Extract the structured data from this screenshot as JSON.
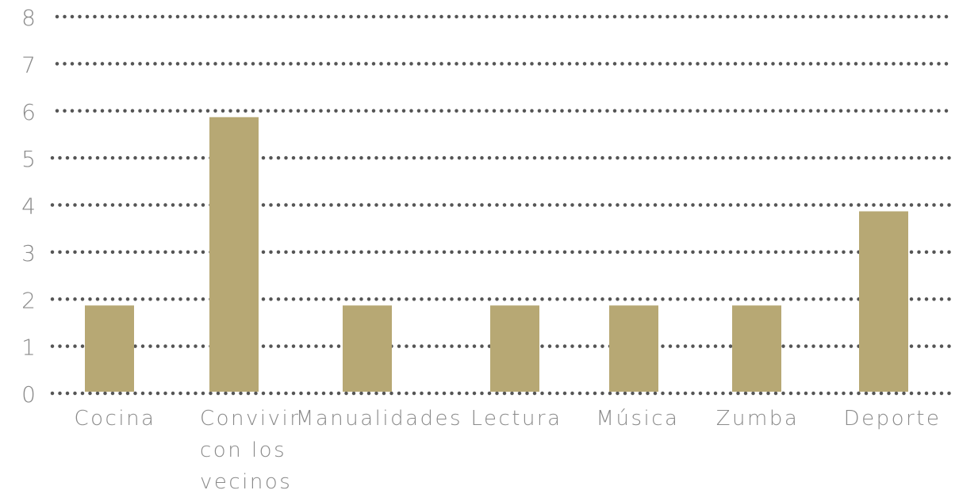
{
  "chart_data": {
    "type": "bar",
    "categories": [
      "Cocina",
      "Convivir con los vecinos",
      "Manualidades",
      "Lectura",
      "Música",
      "Zumba",
      "Deporte"
    ],
    "category_label_lines": [
      [
        "Cocina"
      ],
      [
        "Convivir",
        "con los",
        "vecinos"
      ],
      [
        "Manualidades"
      ],
      [
        "Lectura"
      ],
      [
        "Música"
      ],
      [
        "Zumba"
      ],
      [
        "Deporte"
      ]
    ],
    "values": [
      2,
      6,
      2,
      2,
      2,
      2,
      4
    ],
    "y_ticks": [
      "0",
      "1",
      "2",
      "3",
      "4",
      "5",
      "6",
      "7",
      "8"
    ],
    "ylim": [
      0,
      8
    ],
    "grid": true,
    "grid_style": "dotted",
    "legend": "none",
    "title": "",
    "xlabel": "",
    "ylabel": ""
  },
  "colors": {
    "bar": "#b7a874",
    "grid": "#555555",
    "text": "#8a8a8a",
    "background": "#ffffff"
  }
}
